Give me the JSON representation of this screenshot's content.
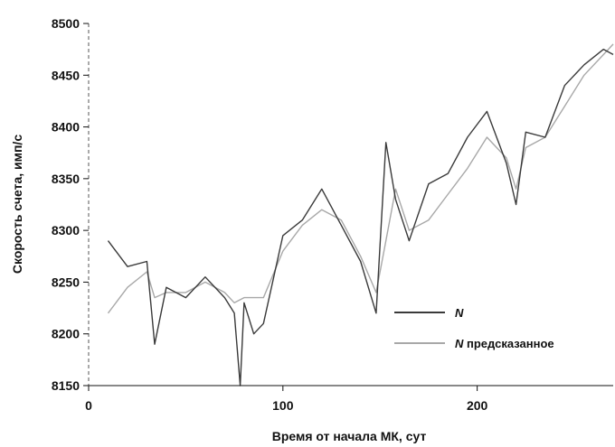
{
  "chart_data": {
    "type": "line",
    "xlabel": "Время от начала МК, сут",
    "ylabel": "Скорость счета, имп/с",
    "xlim": [
      0,
      270
    ],
    "ylim": [
      8150,
      8500
    ],
    "x_ticks": [
      "0",
      "100",
      "200"
    ],
    "x_tick_values": [
      0,
      100,
      200
    ],
    "y_ticks": [
      "8150",
      "8200",
      "8250",
      "8300",
      "8350",
      "8400",
      "8450",
      "8500"
    ],
    "y_tick_values": [
      8150,
      8200,
      8250,
      8300,
      8350,
      8400,
      8450,
      8500
    ],
    "grid": false,
    "legend_position": "bottom-right",
    "series": [
      {
        "name": "N",
        "name_suffix": "",
        "color": "#3a3a3a",
        "x": [
          10,
          20,
          30,
          34,
          40,
          50,
          60,
          70,
          75,
          78,
          80,
          85,
          90,
          100,
          110,
          120,
          130,
          140,
          148,
          153,
          158,
          165,
          175,
          185,
          195,
          205,
          215,
          220,
          225,
          235,
          245,
          255,
          265,
          270
        ],
        "values": [
          8290,
          8265,
          8270,
          8190,
          8245,
          8235,
          8255,
          8235,
          8220,
          8150,
          8230,
          8200,
          8210,
          8295,
          8310,
          8340,
          8305,
          8270,
          8220,
          8385,
          8330,
          8290,
          8345,
          8355,
          8390,
          8415,
          8365,
          8325,
          8395,
          8390,
          8440,
          8460,
          8475,
          8470
        ]
      },
      {
        "name": "N",
        "name_suffix": " предсказанное",
        "color": "#a8a8a8",
        "x": [
          10,
          20,
          30,
          34,
          40,
          50,
          60,
          70,
          75,
          80,
          85,
          90,
          100,
          110,
          120,
          130,
          140,
          148,
          153,
          158,
          165,
          175,
          185,
          195,
          205,
          215,
          220,
          225,
          235,
          245,
          255,
          265,
          270
        ],
        "values": [
          8220,
          8245,
          8260,
          8235,
          8240,
          8240,
          8250,
          8240,
          8230,
          8235,
          8235,
          8235,
          8280,
          8305,
          8320,
          8310,
          8275,
          8240,
          8290,
          8340,
          8300,
          8310,
          8335,
          8360,
          8390,
          8370,
          8340,
          8380,
          8390,
          8420,
          8450,
          8470,
          8480
        ]
      }
    ]
  }
}
